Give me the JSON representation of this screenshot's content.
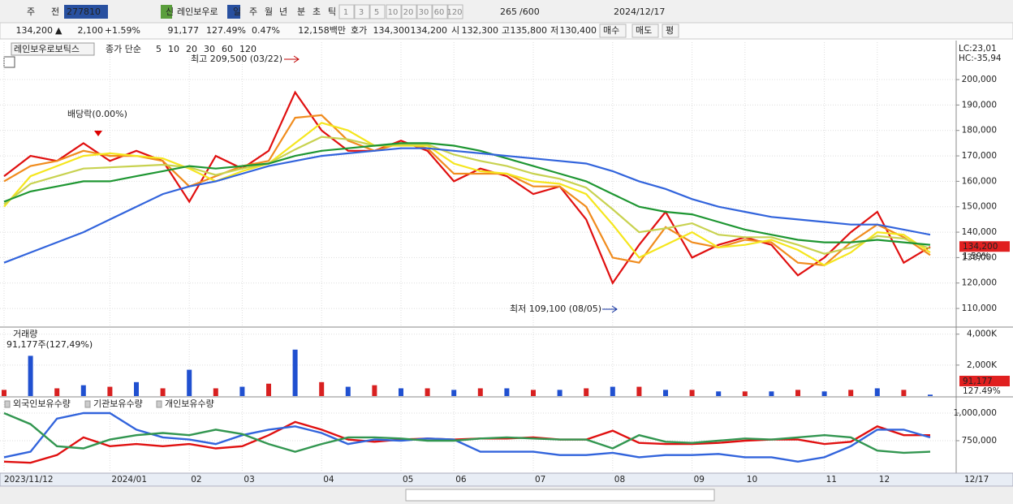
{
  "toolbar": {
    "items": [
      "주",
      "전",
      "277810",
      "신",
      "레인보우로",
      "일",
      "주",
      "월",
      "년",
      "분",
      "초",
      "틱",
      "1",
      "3",
      "5",
      "10",
      "20",
      "30",
      "60",
      "120",
      "265",
      "/600",
      "2024/12/17"
    ]
  },
  "info": {
    "items": [
      "134,200",
      "▲",
      "2,100",
      "+1.59%",
      "91,177",
      "127.49%",
      "0.47%",
      "12,158백만",
      "호가",
      "134,300",
      "134,200",
      "시",
      "132,300",
      "고",
      "135,800",
      "저",
      "130,400",
      "매수",
      "매도",
      "평"
    ]
  },
  "chart_data": [
    {
      "type": "line",
      "title": "레인보우로보틱스",
      "legend_prefix": "종가 단순",
      "categories": [
        "2023/11/12",
        null,
        null,
        null,
        "2024/01",
        null,
        null,
        "02",
        null,
        "03",
        null,
        null,
        "04",
        null,
        null,
        "05",
        null,
        "06",
        null,
        null,
        "07",
        null,
        null,
        "08",
        null,
        null,
        "09",
        null,
        "10",
        null,
        null,
        "11",
        null,
        "12",
        null,
        null
      ],
      "x_end_label": "12/17",
      "series": [
        {
          "name": "5",
          "color": "#e01010",
          "values": [
            162000,
            170000,
            168000,
            175000,
            168000,
            172000,
            168000,
            152000,
            170000,
            165000,
            172000,
            195000,
            180000,
            172000,
            172000,
            176000,
            172000,
            160000,
            165000,
            162000,
            155000,
            158000,
            145000,
            120000,
            135000,
            148000,
            130000,
            135000,
            138000,
            135000,
            123000,
            130000,
            140000,
            148000,
            128000,
            134200
          ]
        },
        {
          "name": "10",
          "color": "#f08c1e",
          "values": [
            160000,
            166000,
            168000,
            172000,
            170000,
            170000,
            168000,
            158000,
            162000,
            166000,
            168000,
            185000,
            186000,
            176000,
            172000,
            175000,
            173000,
            163000,
            163000,
            163000,
            158000,
            158000,
            150000,
            130000,
            128000,
            142000,
            136000,
            134000,
            137000,
            136000,
            128000,
            127000,
            136000,
            143000,
            138000,
            131000
          ]
        },
        {
          "name": "20",
          "color": "#f5e61e",
          "values": [
            150000,
            162000,
            166000,
            170000,
            171000,
            170000,
            169000,
            165000,
            160000,
            164000,
            167000,
            175000,
            183000,
            180000,
            174000,
            174000,
            174000,
            167000,
            164000,
            163000,
            160000,
            159000,
            155000,
            143000,
            130000,
            135000,
            140000,
            134000,
            135000,
            137000,
            133000,
            127000,
            132000,
            140000,
            139000,
            132000
          ]
        },
        {
          "name": "30",
          "color": "#c8d250",
          "values": [
            151000,
            159000,
            162000,
            165000,
            165500,
            166000,
            166500,
            165500,
            162500,
            165000,
            167000,
            172500,
            177500,
            176500,
            174000,
            174500,
            174500,
            170500,
            168000,
            166000,
            163000,
            161000,
            157500,
            149000,
            140000,
            141500,
            143500,
            139000,
            138000,
            138000,
            135000,
            131500,
            134000,
            138500,
            137500,
            133500
          ]
        },
        {
          "name": "60",
          "color": "#1e9632",
          "values": [
            152000,
            156000,
            158000,
            160000,
            160000,
            162000,
            164000,
            166000,
            165000,
            166000,
            167000,
            170000,
            172000,
            173000,
            174000,
            175000,
            175000,
            174000,
            172000,
            169000,
            166000,
            163000,
            160000,
            155000,
            150000,
            148000,
            147000,
            144000,
            141000,
            139000,
            137000,
            136000,
            136000,
            137000,
            136000,
            135000
          ]
        },
        {
          "name": "120",
          "color": "#3264dc",
          "values": [
            128000,
            132000,
            136000,
            140000,
            145000,
            150000,
            155000,
            158000,
            160000,
            163000,
            166000,
            168000,
            170000,
            171000,
            172000,
            173000,
            173000,
            172000,
            171000,
            170000,
            169000,
            168000,
            167000,
            164000,
            160000,
            157000,
            153000,
            150000,
            148000,
            146000,
            145000,
            144000,
            143000,
            143000,
            141000,
            139000
          ]
        }
      ],
      "ylim": [
        103000,
        214700
      ],
      "yticks": [
        {
          "value": 110000,
          "label": "110,000"
        },
        {
          "value": 120000,
          "label": "120,000"
        },
        {
          "value": 130000,
          "label": "130,000"
        },
        {
          "value": 140000,
          "label": "140,000"
        },
        {
          "value": 150000,
          "label": "150,000"
        },
        {
          "value": 160000,
          "label": "160,000"
        },
        {
          "value": 170000,
          "label": "170,000"
        },
        {
          "value": 180000,
          "label": "180,000"
        },
        {
          "value": 190000,
          "label": "190,000"
        },
        {
          "value": 200000,
          "label": "200,000"
        }
      ],
      "grid": true,
      "annotations": [
        "최고 209,500 (03/22)",
        "배당락(0.00%)",
        "최저 109,100 (08/05)"
      ],
      "last_label": "134,200",
      "change_label": "1.59%",
      "corner_labels": [
        "LC:23,01",
        "HC:-35,94"
      ]
    },
    {
      "type": "bar",
      "title": "거래량",
      "subtitle": "91,177주(127,49%)",
      "color": "#d82020",
      "values": [
        400,
        2600,
        500,
        700,
        600,
        900,
        500,
        1700,
        500,
        600,
        800,
        3000,
        900,
        600,
        700,
        500,
        500,
        400,
        500,
        500,
        400,
        400,
        500,
        600,
        600,
        400,
        400,
        300,
        300,
        300,
        400,
        300,
        400,
        500,
        400,
        91.177
      ],
      "ylim": [
        0,
        4300
      ],
      "yticks": [
        {
          "value": 2000,
          "label": "2,000K"
        },
        {
          "value": 4000,
          "label": "4,000K"
        }
      ],
      "last_label": "91,177",
      "change_label": "127.49%"
    },
    {
      "type": "line",
      "series": [
        {
          "name": "외국인보유수량",
          "color": "#e01010",
          "values": [
            560000,
            550000,
            620000,
            780000,
            700000,
            720000,
            700000,
            720000,
            680000,
            700000,
            800000,
            920000,
            850000,
            760000,
            740000,
            760000,
            770000,
            760000,
            770000,
            770000,
            780000,
            760000,
            760000,
            840000,
            730000,
            720000,
            720000,
            730000,
            750000,
            760000,
            760000,
            720000,
            740000,
            880000,
            800000,
            800000
          ]
        },
        {
          "name": "기관보유수량",
          "color": "#3264dc",
          "values": [
            600000,
            650000,
            950000,
            1000000,
            1000000,
            850000,
            780000,
            760000,
            720000,
            800000,
            850000,
            880000,
            820000,
            720000,
            760000,
            750000,
            770000,
            760000,
            650000,
            650000,
            650000,
            620000,
            620000,
            640000,
            600000,
            620000,
            620000,
            630000,
            600000,
            600000,
            560000,
            600000,
            700000,
            850000,
            850000,
            780000
          ]
        },
        {
          "name": "개인보유수량",
          "color": "#329650",
          "values": [
            1000000,
            900000,
            700000,
            680000,
            760000,
            800000,
            820000,
            800000,
            850000,
            810000,
            720000,
            650000,
            720000,
            780000,
            780000,
            770000,
            750000,
            750000,
            770000,
            780000,
            770000,
            760000,
            760000,
            680000,
            800000,
            740000,
            730000,
            750000,
            770000,
            760000,
            780000,
            800000,
            780000,
            660000,
            640000,
            650000
          ]
        }
      ],
      "ylim": [
        463000,
        1125000
      ],
      "yticks": [
        {
          "value": 750000,
          "label": "750,000"
        },
        {
          "value": 1000000,
          "label": "1,000,000"
        }
      ]
    }
  ]
}
